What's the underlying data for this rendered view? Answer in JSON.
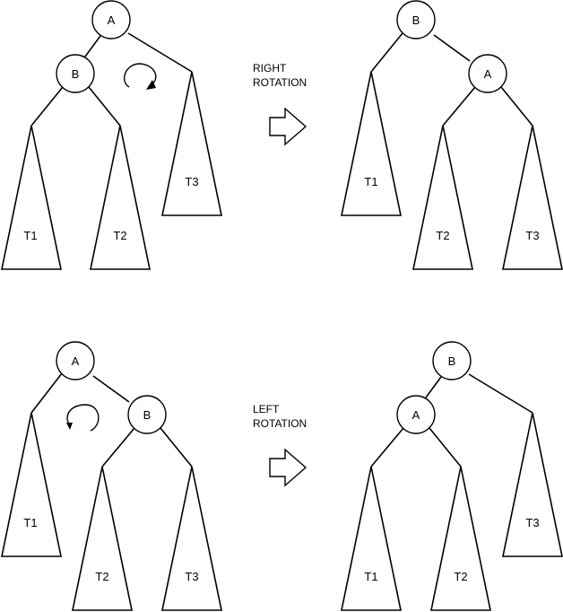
{
  "right_rotation": {
    "caption_line1": "RIGHT",
    "caption_line2": "ROTATION",
    "before": {
      "root": "A",
      "child": "B",
      "subtrees": [
        "T1",
        "T2",
        "T3"
      ]
    },
    "after": {
      "root": "B",
      "child": "A",
      "subtrees": [
        "T1",
        "T2",
        "T3"
      ]
    }
  },
  "left_rotation": {
    "caption_line1": "LEFT",
    "caption_line2": "ROTATION",
    "before": {
      "root": "A",
      "child": "B",
      "subtrees": [
        "T1",
        "T2",
        "T3"
      ]
    },
    "after": {
      "root": "B",
      "child": "A",
      "subtrees": [
        "T1",
        "T2",
        "T3"
      ]
    }
  }
}
